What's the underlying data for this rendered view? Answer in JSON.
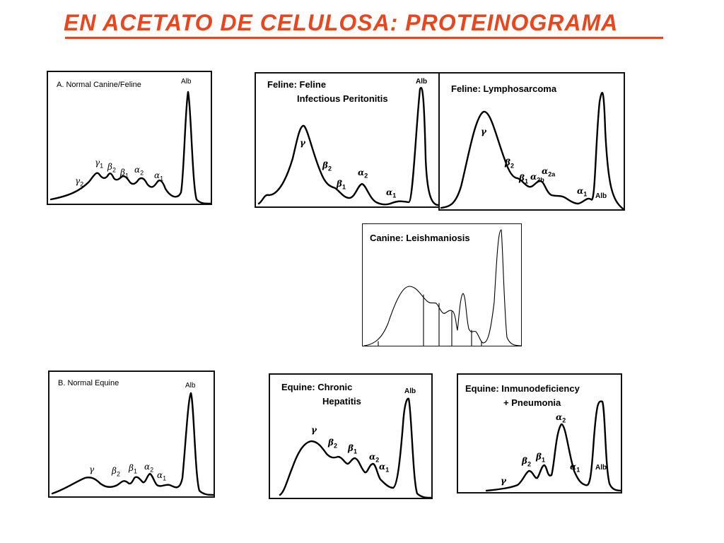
{
  "title": "EN ACETATO DE CELULOSA: PROTEINOGRAMA",
  "panels": {
    "normal_canine_feline": {
      "label": "A. Normal Canine/Feline",
      "peaks": {
        "g2": "γ",
        "g2_sub": "2",
        "g1": "γ",
        "g1_sub": "1",
        "b2": "β",
        "b2_sub": "2",
        "b1": "β",
        "b1_sub": "1",
        "a2": "α",
        "a2_sub": "2",
        "a1": "α",
        "a1_sub": "1",
        "alb": "Alb"
      }
    },
    "feline_fip": {
      "label_line1": "Feline: Feline",
      "label_line2": "Infectious Peritonitis",
      "peaks": {
        "g": "γ",
        "b2": "β",
        "b2_sub": "2",
        "b1": "β",
        "b1_sub": "1",
        "a2": "α",
        "a2_sub": "2",
        "a1": "α",
        "a1_sub": "1",
        "alb": "Alb"
      }
    },
    "feline_lymphosarcoma": {
      "label": "Feline: Lymphosarcoma",
      "peaks": {
        "g": "γ",
        "b2": "β",
        "b2_sub": "2",
        "b1": "β",
        "b1_sub": "1",
        "a2b": "α",
        "a2b_sub": "2b",
        "a2a": "α",
        "a2a_sub": "2a",
        "a1": "α",
        "a1_sub": "1",
        "alb": "Alb"
      }
    },
    "canine_leishmaniosis": {
      "label": "Canine: Leishmaniosis"
    },
    "normal_equine": {
      "label": "B. Normal Equine",
      "peaks": {
        "g": "γ",
        "b2": "β",
        "b2_sub": "2",
        "b1": "β",
        "b1_sub": "1",
        "a2": "α",
        "a2_sub": "2",
        "a1": "α",
        "a1_sub": "1",
        "alb": "Alb"
      }
    },
    "equine_chronic_hepatitis": {
      "label_line1": "Equine: Chronic",
      "label_line2": "Hepatitis",
      "peaks": {
        "g": "γ",
        "b2": "β",
        "b2_sub": "2",
        "b1": "β",
        "b1_sub": "1",
        "a2": "α",
        "a2_sub": "2",
        "a1": "α",
        "a1_sub": "1",
        "alb": "Alb"
      }
    },
    "equine_immunodeficiency": {
      "label_line1": "Equine: Inmunodeficiency",
      "label_line2": "+ Pneumonia",
      "peaks": {
        "g": "γ",
        "b2": "β",
        "b2_sub": "2",
        "b1": "β",
        "b1_sub": "1",
        "a2": "α",
        "a2_sub": "2",
        "a1": "α",
        "a1_sub": "1",
        "alb": "Alb"
      }
    }
  },
  "colors": {
    "title": "#e8461e",
    "trace": "#000000",
    "frame": "#111111"
  }
}
